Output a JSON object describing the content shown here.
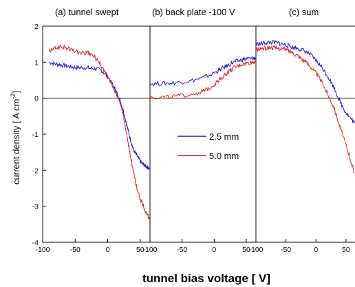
{
  "chart_data": {
    "type": "line",
    "ylabel": "current density  [ A cm",
    "ylabel_exponent": "-2",
    "ylabel_close": "]",
    "xlabel": "tunnel bias voltage  [ V]",
    "ylim": [
      -4,
      2
    ],
    "yticks": [
      "2",
      "1",
      "0",
      "-1",
      "-2",
      "-3",
      "-4"
    ],
    "grid": false,
    "legend": {
      "placement": "center",
      "entries": [
        {
          "label": "2.5 mm",
          "color": "#1414e6"
        },
        {
          "label": "5.0 mm",
          "color": "#e61414"
        }
      ]
    },
    "panels": [
      {
        "title": "(a) tunnel swept",
        "xlim": [
          -100,
          65
        ],
        "xticks": [
          "-100",
          "-50",
          "0",
          "50"
        ],
        "series": [
          {
            "color": "#1414e6",
            "x": [
              -90,
              -80,
              -70,
              -60,
              -50,
              -40,
              -30,
              -20,
              -10,
              0,
              10,
              15,
              20,
              25,
              30,
              35,
              40,
              45,
              50,
              55,
              60,
              64
            ],
            "y": [
              1.0,
              0.95,
              0.92,
              0.88,
              0.85,
              0.85,
              0.84,
              0.82,
              0.78,
              0.6,
              0.3,
              0.1,
              -0.1,
              -0.4,
              -0.8,
              -1.15,
              -1.45,
              -1.6,
              -1.75,
              -1.85,
              -1.9,
              -1.95
            ]
          },
          {
            "color": "#e61414",
            "x": [
              -90,
              -80,
              -70,
              -60,
              -50,
              -40,
              -30,
              -20,
              -10,
              0,
              10,
              15,
              20,
              25,
              30,
              35,
              40,
              45,
              50,
              55,
              60,
              64
            ],
            "y": [
              1.3,
              1.4,
              1.42,
              1.38,
              1.3,
              1.25,
              1.25,
              1.15,
              0.9,
              0.6,
              0.2,
              0.05,
              -0.2,
              -0.55,
              -1.1,
              -1.6,
              -2.1,
              -2.5,
              -2.8,
              -3.0,
              -3.2,
              -3.35
            ]
          }
        ]
      },
      {
        "title": "(b) back plate -100 V",
        "xlim": [
          -100,
          65
        ],
        "xticks": [
          "-100",
          "-50",
          "0",
          "50"
        ],
        "series": [
          {
            "color": "#1414e6",
            "x": [
              -100,
              -80,
              -60,
              -40,
              -20,
              0,
              10,
              20,
              30,
              40,
              50,
              60,
              64
            ],
            "y": [
              0.4,
              0.41,
              0.43,
              0.47,
              0.55,
              0.7,
              0.8,
              0.9,
              1.0,
              1.05,
              1.1,
              1.1,
              1.12
            ]
          },
          {
            "color": "#e61414",
            "x": [
              -100,
              -80,
              -60,
              -40,
              -20,
              -10,
              0,
              10,
              20,
              30,
              40,
              50,
              60,
              64
            ],
            "y": [
              0.02,
              0.03,
              0.05,
              0.09,
              0.17,
              0.25,
              0.38,
              0.55,
              0.7,
              0.83,
              0.92,
              0.97,
              1.0,
              1.02
            ]
          }
        ]
      },
      {
        "title": "(c) sum",
        "xlim": [
          -100,
          65
        ],
        "xticks": [
          "-100",
          "-50",
          "0",
          "50"
        ],
        "series": [
          {
            "color": "#1414e6",
            "x": [
              -100,
              -90,
              -80,
              -70,
              -60,
              -50,
              -40,
              -30,
              -20,
              -10,
              0,
              10,
              20,
              30,
              40,
              50,
              60,
              64
            ],
            "y": [
              1.5,
              1.52,
              1.55,
              1.55,
              1.52,
              1.48,
              1.42,
              1.38,
              1.32,
              1.22,
              1.05,
              0.85,
              0.6,
              0.3,
              -0.1,
              -0.4,
              -0.6,
              -0.7
            ]
          },
          {
            "color": "#e61414",
            "x": [
              -100,
              -90,
              -80,
              -70,
              -60,
              -50,
              -40,
              -30,
              -20,
              -10,
              0,
              10,
              20,
              30,
              40,
              50,
              60,
              64
            ],
            "y": [
              1.35,
              1.38,
              1.4,
              1.4,
              1.38,
              1.35,
              1.28,
              1.18,
              1.05,
              0.9,
              0.7,
              0.45,
              0.1,
              -0.25,
              -0.8,
              -1.3,
              -1.85,
              -2.05
            ]
          }
        ]
      }
    ]
  }
}
